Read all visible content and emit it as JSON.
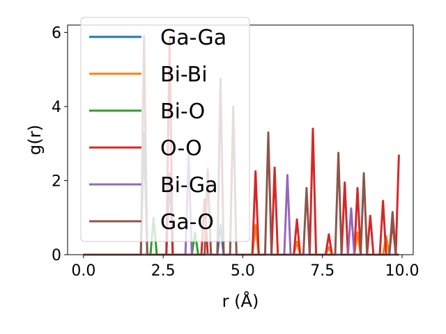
{
  "chart_data": {
    "type": "line",
    "title": "",
    "xlabel": "r (Å)",
    "ylabel": "g(r)",
    "xlim": [
      -0.5,
      10.35
    ],
    "ylim": [
      0,
      6.2
    ],
    "xticks": [
      0.0,
      2.5,
      5.0,
      7.5,
      10.0
    ],
    "xtick_labels": [
      "0.0",
      "2.5",
      "5.0",
      "7.5",
      "10.0"
    ],
    "yticks": [
      0,
      2,
      4,
      6
    ],
    "ytick_labels": [
      "0",
      "2",
      "4",
      "6"
    ],
    "grid": false,
    "legend_position": "upper-left",
    "series": [
      {
        "name": "Ga-Ga",
        "color": "#1f77b4",
        "x": [
          0.0,
          1.8,
          1.9,
          2.0,
          2.6,
          2.7,
          2.8,
          4.2,
          4.3,
          4.4,
          5.5,
          5.6,
          5.7,
          8.0,
          9.9
        ],
        "y": [
          0,
          0,
          3.3,
          0,
          0,
          2.2,
          0,
          0,
          0.8,
          0,
          0,
          0,
          0,
          0,
          0
        ]
      },
      {
        "name": "Bi-Bi",
        "color": "#ff7f0e",
        "x": [
          0.0,
          5.3,
          5.4,
          5.5,
          6.6,
          6.7,
          6.8,
          7.6,
          7.7,
          7.8,
          8.5,
          8.6,
          8.7,
          9.4,
          9.5,
          9.6,
          9.9
        ],
        "y": [
          0,
          0,
          0.8,
          0,
          0,
          0.35,
          0,
          0,
          0.2,
          0,
          0,
          0.6,
          0,
          0,
          0.5,
          0,
          0
        ]
      },
      {
        "name": "Bi-O",
        "color": "#2ca02c",
        "x": [
          0.0,
          2.1,
          2.2,
          2.3,
          3.4,
          3.5,
          3.6,
          9.9
        ],
        "y": [
          0,
          0,
          1.0,
          0,
          0,
          0.6,
          0,
          0
        ]
      },
      {
        "name": "O-O",
        "color": "#d62728",
        "x": [
          0.0,
          2.6,
          2.7,
          2.8,
          3.7,
          3.8,
          3.9,
          5.3,
          5.4,
          5.5,
          5.9,
          6.0,
          6.1,
          6.6,
          6.7,
          6.8,
          7.1,
          7.2,
          7.3,
          7.6,
          7.7,
          7.8,
          8.1,
          8.2,
          8.3,
          8.5,
          8.6,
          8.7,
          8.9,
          9.0,
          9.1,
          9.3,
          9.4,
          9.5,
          9.6,
          9.7,
          9.8,
          9.9
        ],
        "y": [
          0,
          0,
          5.8,
          0,
          0,
          1.5,
          0,
          0,
          2.25,
          0,
          0,
          2.35,
          0,
          0,
          0.95,
          0,
          0,
          3.4,
          0,
          0,
          0.55,
          0,
          0,
          1.95,
          0,
          0,
          1.8,
          0,
          0,
          1.05,
          0,
          0,
          1.45,
          0,
          0,
          0.9,
          0,
          2.7
        ]
      },
      {
        "name": "Bi-Ga",
        "color": "#9467bd",
        "x": [
          0.0,
          3.2,
          3.3,
          3.4,
          6.3,
          6.4,
          6.5,
          8.3,
          8.4,
          8.5,
          9.9
        ],
        "y": [
          0,
          0,
          2.7,
          0,
          0,
          2.15,
          0,
          0,
          1.25,
          0,
          0
        ]
      },
      {
        "name": "Ga-O",
        "color": "#8c564b",
        "x": [
          0.0,
          1.8,
          1.9,
          2.0,
          3.8,
          3.9,
          4.0,
          4.2,
          4.3,
          4.4,
          4.6,
          4.7,
          4.8,
          5.7,
          5.8,
          5.9,
          6.9,
          7.0,
          7.1,
          7.9,
          8.0,
          8.1,
          8.7,
          8.8,
          8.9,
          9.6,
          9.7,
          9.8,
          9.9
        ],
        "y": [
          0,
          0,
          5.9,
          0,
          0,
          2.3,
          0,
          0,
          4.75,
          0,
          0,
          4.0,
          0,
          0,
          3.3,
          0,
          0,
          1.8,
          0,
          0,
          2.75,
          0,
          0,
          2.2,
          0,
          0,
          1.15,
          0,
          0
        ]
      }
    ]
  }
}
